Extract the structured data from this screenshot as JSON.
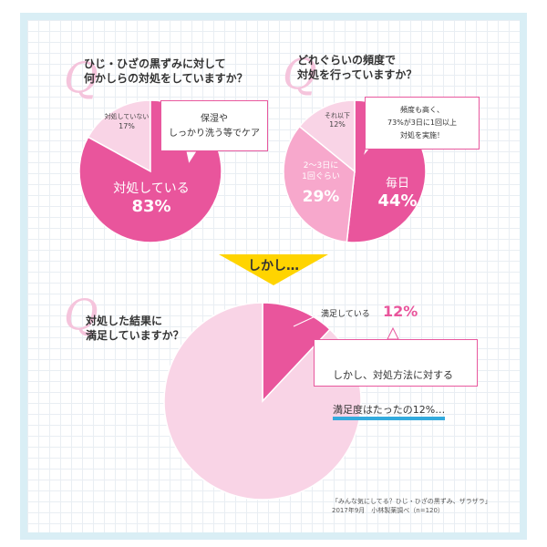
{
  "colors": {
    "magenta": "#e9559c",
    "pink": "#f7a8cc",
    "light_pink": "#f9d4e6",
    "arrow": "#ffd400",
    "bubble_border": "#e8589e",
    "underline": "#33aadd"
  },
  "chart_data": [
    {
      "type": "pie",
      "title": "ひじ・ひざの黒ずみに対して\n何かしらの対処をしていますか？",
      "slices": [
        {
          "label": "対処している",
          "value": 83,
          "display": "83%",
          "color": "#e9559c"
        },
        {
          "label": "対処していない",
          "value": 17,
          "display": "17%",
          "color": "#f9d4e6"
        }
      ],
      "callout": "保湿や\nしっかり洗う等でケア"
    },
    {
      "type": "pie",
      "title": "どれぐらいの頻度で\n対処を行っていますか？",
      "slices": [
        {
          "label": "毎日",
          "value": 44,
          "display": "44%",
          "color": "#e9559c"
        },
        {
          "label": "2〜3日に\n1回ぐらい",
          "value": 29,
          "display": "29%",
          "color": "#f7a8cc"
        },
        {
          "label": "それ以下",
          "value": 12,
          "display": "12%",
          "color": "#f9d4e6"
        }
      ],
      "callout": "頻度も高く、\n73%が3日に1回以上\n対処を実施！"
    },
    {
      "type": "pie",
      "title": "対処した結果に\n満足していますか？",
      "slices": [
        {
          "label": "満足している",
          "value": 12,
          "display": "12%",
          "color": "#e9559c"
        },
        {
          "label": "",
          "value": 88,
          "display": "",
          "color": "#f9d4e6"
        }
      ],
      "callout_line1": "しかし、対処方法に対する",
      "callout_line2": "満足度はたったの12%…"
    }
  ],
  "q_mark": "Q",
  "transition": "しかし…",
  "source": "「みんな気にしてる？ひじ・ひざの黒ずみ、ザラザラ」\n2017年9月　小林製薬調べ（n=120）"
}
